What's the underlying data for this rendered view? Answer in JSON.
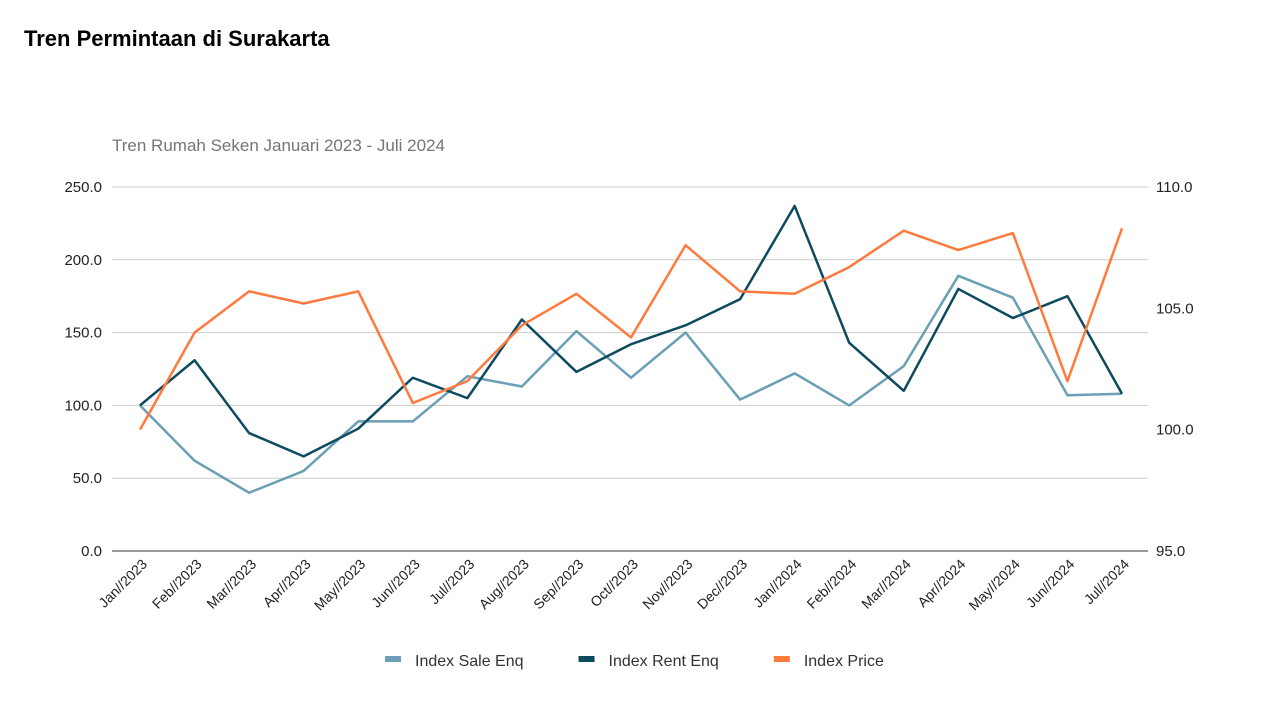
{
  "page": {
    "title": "Tren Permintaan di Surakarta"
  },
  "chart_data": {
    "type": "line",
    "title": "Tren Rumah Seken Januari 2023 - Juli 2024",
    "categories": [
      "Jan//2023",
      "Feb//2023",
      "Mar//2023",
      "Apr//2023",
      "May//2023",
      "Jun//2023",
      "Jul//2023",
      "Aug//2023",
      "Sep//2023",
      "Oct//2023",
      "Nov//2023",
      "Dec//2023",
      "Jan//2024",
      "Feb//2024",
      "Mar//2024",
      "Apr//2024",
      "May//2024",
      "Jun//2024",
      "Jul//2024"
    ],
    "left_axis": {
      "ylim": [
        0,
        250
      ],
      "ticks": [
        "0.0",
        "50.0",
        "100.0",
        "150.0",
        "200.0",
        "250.0"
      ]
    },
    "right_axis": {
      "ylim": [
        95,
        110
      ],
      "ticks": [
        "95.0",
        "100.0",
        "105.0",
        "110.0"
      ]
    },
    "grid": true,
    "legend": "bottom",
    "series": [
      {
        "name": "Index Sale Enq",
        "axis": "left",
        "color": "#6a9fb5",
        "values": [
          100,
          62,
          40,
          55,
          89,
          89,
          120,
          113,
          151,
          119,
          150,
          104,
          122,
          100,
          127,
          189,
          174,
          107,
          108
        ]
      },
      {
        "name": "Index Rent Enq",
        "axis": "left",
        "color": "#0d4a5f",
        "values": [
          100,
          131,
          81,
          65,
          84,
          119,
          105,
          159,
          123,
          142,
          155,
          173,
          237,
          143,
          110,
          180,
          160,
          175,
          108
        ]
      },
      {
        "name": "Index Price",
        "axis": "right",
        "color": "#ff7a3d",
        "values": [
          100.0,
          104.0,
          105.7,
          105.2,
          105.7,
          101.1,
          102.0,
          104.3,
          105.6,
          103.8,
          107.6,
          105.7,
          105.6,
          106.7,
          108.2,
          107.4,
          108.1,
          102.0,
          108.3
        ]
      }
    ]
  }
}
